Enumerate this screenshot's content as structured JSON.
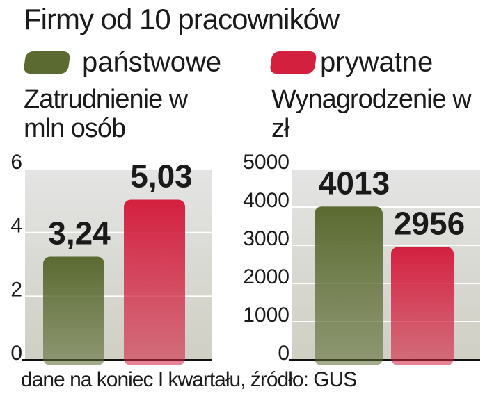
{
  "title": "Firmy od 10 pracowników",
  "source": "dane na koniec I kwartału, źródło: GUS",
  "chart_data": [
    {
      "type": "bar",
      "title": "Zatrudnienie w mln osób",
      "series": [
        {
          "name": "państwowe",
          "color": "#5a6a30",
          "values": [
            3.24
          ],
          "value_labels": [
            "3,24"
          ]
        },
        {
          "name": "prywatne",
          "color": "#d3203f",
          "values": [
            5.03
          ],
          "value_labels": [
            "5,03"
          ]
        }
      ],
      "ylim": [
        0,
        6
      ],
      "yticks": [
        0,
        2,
        4,
        6
      ],
      "grid": true
    },
    {
      "type": "bar",
      "title": "Wynagrodzenie w zł",
      "series": [
        {
          "color": "#5a6a30",
          "values": [
            4013
          ]
        },
        {
          "color": "#d3203f",
          "values": [
            2956
          ]
        }
      ],
      "ylim": [
        0,
        5000
      ],
      "yticks": [
        0,
        1000,
        2000,
        3000,
        4000,
        5000
      ],
      "grid": true
    }
  ]
}
